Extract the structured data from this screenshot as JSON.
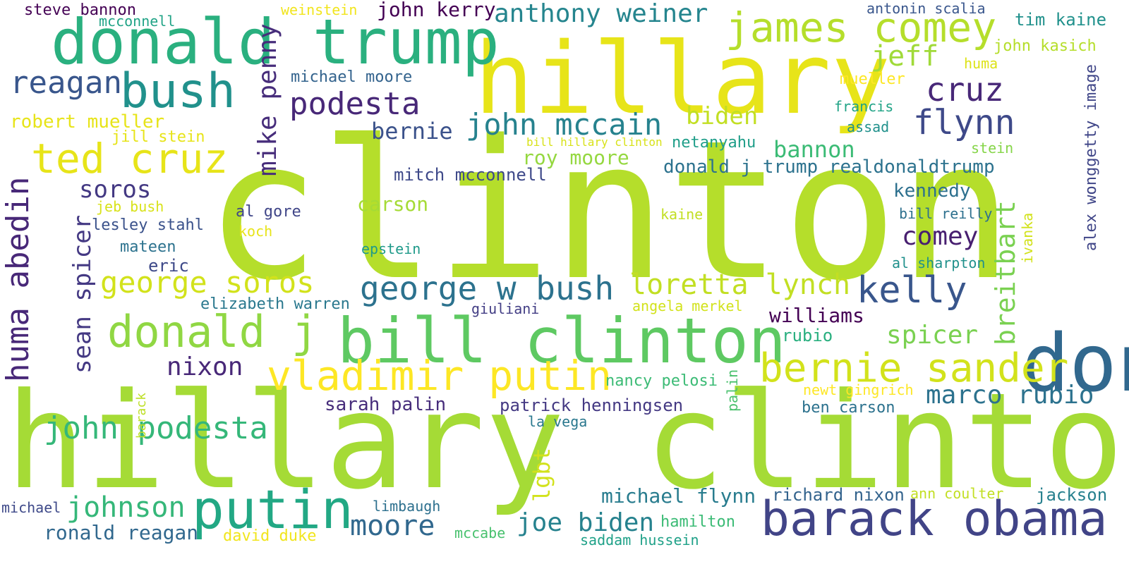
{
  "words": [
    {
      "text": "clinton",
      "color": "#b5de2b"
    },
    {
      "text": "hillary clinton",
      "color": "#a5db36"
    },
    {
      "text": "hillary",
      "color": "#e7e419"
    },
    {
      "text": "donald trump",
      "color": "#2ab07f"
    },
    {
      "text": "donald",
      "color": "#31688e"
    },
    {
      "text": "bill clinton",
      "color": "#5ec962"
    },
    {
      "text": "barack obama",
      "color": "#414487"
    },
    {
      "text": "putin",
      "color": "#22a884"
    },
    {
      "text": "bush",
      "color": "#21918c"
    },
    {
      "text": "james comey",
      "color": "#b5de2b"
    },
    {
      "text": "ted cruz",
      "color": "#e7e419"
    },
    {
      "text": "donald j",
      "color": "#90d743"
    },
    {
      "text": "vladimir putin",
      "color": "#fde725"
    },
    {
      "text": "bernie sander",
      "color": "#d2e21b"
    },
    {
      "text": "george w bush",
      "color": "#2c728e"
    },
    {
      "text": "kelly",
      "color": "#39568c"
    },
    {
      "text": "george soros",
      "color": "#d2e21b"
    },
    {
      "text": "john podesta",
      "color": "#35b779"
    },
    {
      "text": "huma abedin",
      "color": "#482878"
    },
    {
      "text": "podesta",
      "color": "#482878"
    },
    {
      "text": "john mccain",
      "color": "#26828e"
    },
    {
      "text": "cruz",
      "color": "#482878"
    },
    {
      "text": "flynn",
      "color": "#3e4989"
    },
    {
      "text": "reagan",
      "color": "#39568c"
    },
    {
      "text": "anthony weiner",
      "color": "#25858e"
    },
    {
      "text": "mike penny",
      "color": "#472d7b"
    },
    {
      "text": "johnson",
      "color": "#35b779"
    },
    {
      "text": "moore",
      "color": "#31688e"
    },
    {
      "text": "marco rubio",
      "color": "#2c728e"
    },
    {
      "text": "jeff",
      "color": "#a0da39"
    },
    {
      "text": "breitbart",
      "color": "#7ad151"
    },
    {
      "text": "loretta lynch",
      "color": "#c2df23"
    },
    {
      "text": "nixon",
      "color": "#482878"
    },
    {
      "text": "sean spicer",
      "color": "#443983"
    },
    {
      "text": "joe biden",
      "color": "#26828e"
    },
    {
      "text": "spicer",
      "color": "#7ad151"
    },
    {
      "text": "comey",
      "color": "#481f70"
    },
    {
      "text": "soros",
      "color": "#443983"
    },
    {
      "text": "biden",
      "color": "#c2df23"
    },
    {
      "text": "bernie",
      "color": "#3b528b"
    },
    {
      "text": "bannon",
      "color": "#3bbb75"
    },
    {
      "text": "ronald reagan",
      "color": "#31688e"
    },
    {
      "text": "michael flynn",
      "color": "#287c8e"
    },
    {
      "text": "donald j trump realdonaldtrump",
      "color": "#2c728e"
    },
    {
      "text": "williams",
      "color": "#440154"
    },
    {
      "text": "sarah palin",
      "color": "#472d7b"
    },
    {
      "text": "lgbt",
      "color": "#d2e21b"
    },
    {
      "text": "carson",
      "color": "#a5db36"
    },
    {
      "text": "roy moore",
      "color": "#95d840"
    },
    {
      "text": "kennedy",
      "color": "#2d708e"
    },
    {
      "text": "robert mueller",
      "color": "#e7e419"
    },
    {
      "text": "john kerry",
      "color": "#440154"
    },
    {
      "text": "patrick henningsen",
      "color": "#443983"
    },
    {
      "text": "richard nixon",
      "color": "#33638d"
    },
    {
      "text": "jackson",
      "color": "#27808e"
    },
    {
      "text": "mitch mcconnell",
      "color": "#3e4989"
    },
    {
      "text": "eric",
      "color": "#3e4989"
    },
    {
      "text": "tim kaine",
      "color": "#21918c"
    },
    {
      "text": "john kasich",
      "color": "#b5de2b"
    },
    {
      "text": "alex wonggetty image",
      "color": "#404688"
    },
    {
      "text": "ben carson",
      "color": "#2c728e"
    },
    {
      "text": "rubio",
      "color": "#29af7f"
    },
    {
      "text": "michael moore",
      "color": "#33638d"
    },
    {
      "text": "nancy pelosi",
      "color": "#3bbb75"
    },
    {
      "text": "elizabeth warren",
      "color": "#2a788e"
    },
    {
      "text": "netanyahu",
      "color": "#1f9e89"
    },
    {
      "text": "ivanka",
      "color": "#d2e21b"
    },
    {
      "text": "mateen",
      "color": "#2c728e"
    },
    {
      "text": "lesley stahl",
      "color": "#3b528b"
    },
    {
      "text": "al gore",
      "color": "#404688"
    },
    {
      "text": "angela merkel",
      "color": "#d2e21b"
    },
    {
      "text": "jill stein",
      "color": "#e7e419"
    },
    {
      "text": "steve bannon",
      "color": "#440154"
    },
    {
      "text": "mcconnell",
      "color": "#20a386"
    },
    {
      "text": "newt gingrich",
      "color": "#fde725"
    },
    {
      "text": "saddam hussein",
      "color": "#1fa188"
    },
    {
      "text": "hamilton",
      "color": "#3bbb75"
    },
    {
      "text": "ann coulter",
      "color": "#c2df23"
    },
    {
      "text": "antonin scalia",
      "color": "#39568c"
    },
    {
      "text": "mueller",
      "color": "#fde725"
    },
    {
      "text": "francis",
      "color": "#20a386"
    },
    {
      "text": "assad",
      "color": "#21918c"
    },
    {
      "text": "stein",
      "color": "#86d549"
    },
    {
      "text": "al sharpton",
      "color": "#21918c"
    },
    {
      "text": "bill reilly",
      "color": "#2d708e"
    },
    {
      "text": "huma",
      "color": "#dde318"
    },
    {
      "text": "epstein",
      "color": "#1f9a8a"
    },
    {
      "text": "kaine",
      "color": "#c2df23"
    },
    {
      "text": "koch",
      "color": "#e7e419"
    },
    {
      "text": "jeb bush",
      "color": "#d8e219"
    },
    {
      "text": "giuliani",
      "color": "#433e85"
    },
    {
      "text": "la vega",
      "color": "#2a788e"
    },
    {
      "text": "palin",
      "color": "#4ac16d"
    },
    {
      "text": "barack",
      "color": "#bddf26"
    },
    {
      "text": "limbaugh",
      "color": "#2d708e"
    },
    {
      "text": "david duke",
      "color": "#f1e51d"
    },
    {
      "text": "mccabe",
      "color": "#48c16e"
    },
    {
      "text": "michael",
      "color": "#3e4989"
    },
    {
      "text": "weinstein",
      "color": "#f1e51d"
    },
    {
      "text": "bill hillary clinton",
      "color": "#d8e219"
    }
  ]
}
